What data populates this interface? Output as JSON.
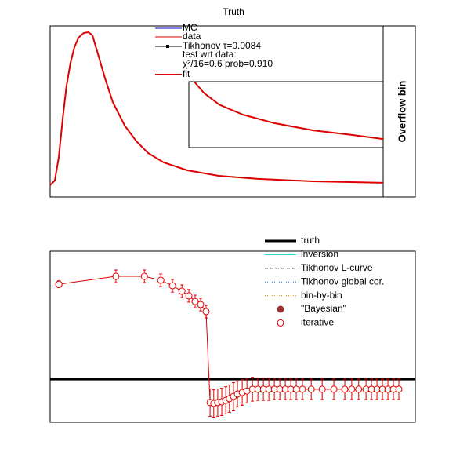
{
  "chart_data": [
    {
      "type": "line",
      "title": "Truth",
      "annotation": "Overflow bin",
      "legend_notes": [
        "test wrt data:",
        "χ²/16=0.6 prob=0.910"
      ],
      "xlim": [
        0,
        100
      ],
      "ylim": [
        0,
        1000
      ],
      "series": [
        {
          "name": "MC",
          "color": "#0000cc"
        },
        {
          "name": "data",
          "color": "#dd0000",
          "x": [
            0,
            1.4,
            2.6,
            3.8,
            4.9,
            6.1,
            7.3,
            8.5,
            10.1,
            11.5,
            12.7,
            14.1,
            16.5,
            18.8,
            22.4,
            25.9,
            29.4,
            34.1,
            41.2,
            50.6,
            62.4,
            78.8,
            100
          ],
          "values": [
            69,
            96,
            234,
            463,
            647,
            784,
            876,
            931,
            959,
            963,
            945,
            853,
            693,
            555,
            417,
            326,
            257,
            202,
            156,
            124,
            106,
            92,
            83
          ]
        },
        {
          "name": "Tikhonov τ=0.0084",
          "color": "#000000"
        },
        {
          "name": "fit",
          "color": "#dd0000"
        }
      ]
    },
    {
      "type": "line",
      "xlim": [
        0,
        100
      ],
      "ylim": [
        0,
        100
      ],
      "series": [
        {
          "color": "#dd0000",
          "x": [
            2.8,
            7.7,
            15.7,
            27.8,
            44,
            64.1,
            84.3,
            100
          ],
          "values": [
            100,
            83,
            65,
            50,
            37,
            26,
            19,
            13
          ]
        }
      ]
    },
    {
      "type": "scatter",
      "xlim": [
        0,
        100
      ],
      "ylim": [
        0,
        100
      ],
      "series": [
        {
          "name": "truth",
          "color": "#000000",
          "style": "thick",
          "x": [
            0,
            100
          ],
          "values": [
            25.2,
            25.2
          ]
        },
        {
          "name": "inversion",
          "color": "#00cccc",
          "style": "solid"
        },
        {
          "name": "Tikhonov L-curve",
          "color": "#000000",
          "style": "dashed"
        },
        {
          "name": "Tikhonov global cor.",
          "color": "#3366cc",
          "style": "dotted"
        },
        {
          "name": "bin-by-bin",
          "color": "#dd8800",
          "style": "dotted"
        },
        {
          "name": "\"Bayesian\"",
          "color": "#993333",
          "style": "filled",
          "x": [
            2.4
          ],
          "values": [
            80.7
          ],
          "errors": [
            2
          ]
        },
        {
          "name": "iterative",
          "color": "#dd0000",
          "style": "open",
          "x": [
            2.4,
            18.0,
            25.8,
            30.3,
            33.5,
            36.1,
            38.0,
            39.7,
            41.2,
            42.7,
            43.8,
            44.8,
            45.9,
            47.0,
            48.1,
            49.1,
            50.2,
            51.3,
            52.6,
            53.9,
            55.4,
            56.9,
            58.4,
            59.9,
            61.4,
            62.9,
            64.4,
            65.9,
            67.4,
            69.1,
            71.5,
            74.5,
            77.7,
            80.7,
            82.6,
            84.5,
            86.5,
            88.0,
            89.5,
            91.0,
            92.5,
            94.0,
            95.5
          ],
          "values": [
            80.7,
            85.3,
            85.3,
            83.0,
            79.8,
            76.6,
            73.9,
            70.6,
            68.8,
            64.7,
            11.5,
            11.0,
            11.5,
            11.9,
            12.8,
            13.8,
            15.1,
            16.5,
            17.4,
            18.3,
            19.3,
            19.3,
            19.3,
            19.3,
            19.3,
            19.3,
            19.3,
            19.3,
            19.3,
            19.3,
            19.3,
            19.3,
            19.3,
            19.3,
            19.3,
            19.3,
            19.3,
            19.3,
            19.3,
            19.3,
            19.3,
            19.3,
            19.3
          ],
          "errors": [
            2,
            3.7,
            3.7,
            3.7,
            3.7,
            3.7,
            3.7,
            3.7,
            3.7,
            3.7,
            8,
            8,
            8,
            8,
            8,
            8,
            8,
            7.5,
            7.5,
            7,
            7,
            6.5,
            6.5,
            6.5,
            6,
            6,
            6,
            6,
            6,
            6,
            6,
            6,
            6,
            6,
            6,
            6,
            6,
            6,
            6,
            6,
            6,
            6,
            6
          ]
        }
      ]
    }
  ]
}
